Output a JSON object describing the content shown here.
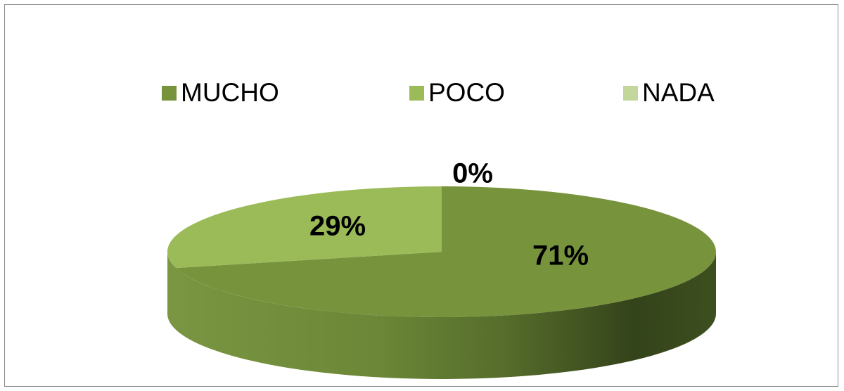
{
  "chart_data": {
    "type": "pie",
    "style": "3d-exploded-flat",
    "categories": [
      "MUCHO",
      "POCO",
      "NADA"
    ],
    "values": [
      71,
      29,
      0
    ],
    "labels": [
      "71%",
      "29%",
      "0%"
    ],
    "colors": [
      "#77933c",
      "#9bbb59",
      "#c3d69b"
    ],
    "legend_position": "top"
  }
}
